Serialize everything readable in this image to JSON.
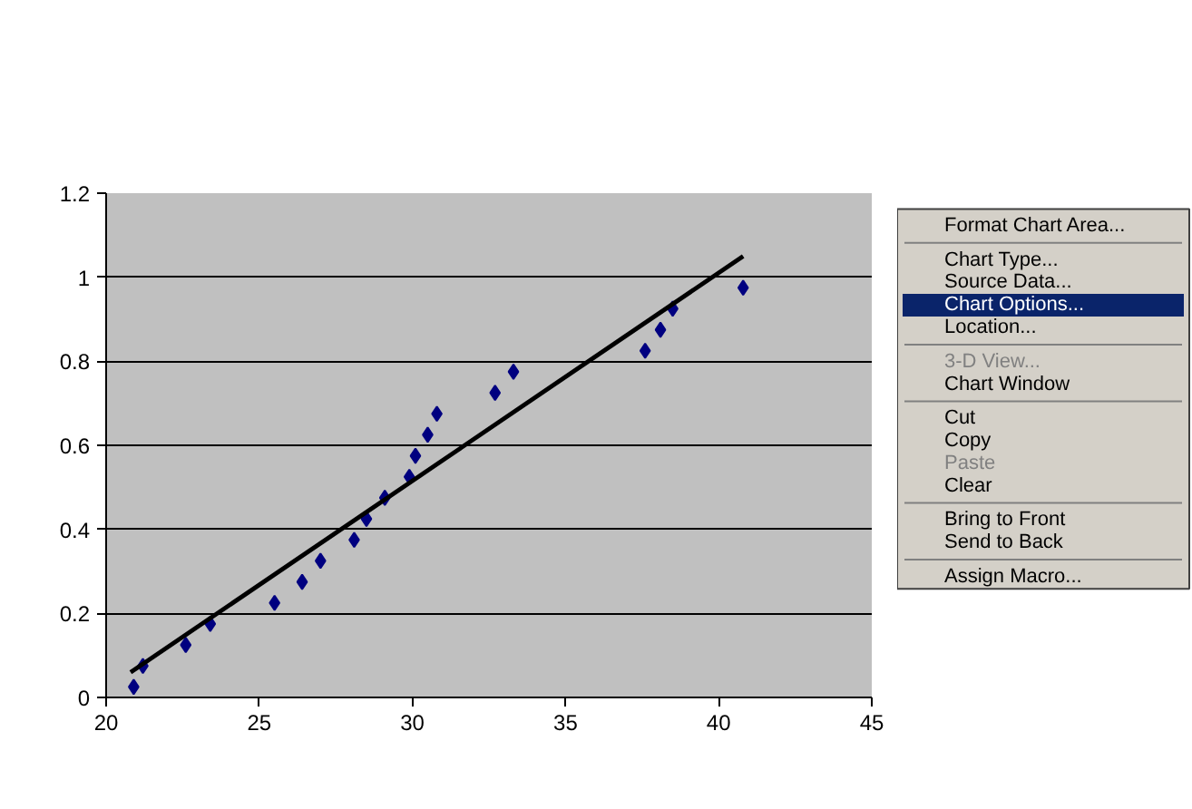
{
  "chart_data": {
    "type": "scatter",
    "xlim": [
      20,
      45
    ],
    "ylim": [
      0,
      1.2
    ],
    "xticks": [
      20,
      25,
      30,
      35,
      40,
      45
    ],
    "yticks": [
      0,
      0.2,
      0.4,
      0.6,
      0.8,
      1,
      1.2
    ],
    "grid": "y",
    "marker": "diamond",
    "series": [
      {
        "color": "#000080",
        "x": [
          20.9,
          21.2,
          22.6,
          23.4,
          25.5,
          26.4,
          27.0,
          28.1,
          28.5,
          29.1,
          29.9,
          30.1,
          30.5,
          30.8,
          32.7,
          33.3,
          37.6,
          38.1,
          38.5,
          40.8
        ],
        "values": [
          0.025,
          0.075,
          0.125,
          0.175,
          0.225,
          0.275,
          0.325,
          0.375,
          0.425,
          0.475,
          0.525,
          0.575,
          0.625,
          0.675,
          0.725,
          0.775,
          0.825,
          0.875,
          0.925,
          0.975
        ]
      },
      {
        "type": "line",
        "marker": "none",
        "color": "#000000",
        "x": [
          20.8,
          40.8
        ],
        "values": [
          0.06,
          1.05
        ]
      }
    ],
    "annotations": [
      "Format Chart Area...",
      "Chart Type...",
      "Source Data...",
      "Chart Options...",
      "Location...",
      "3-D View...",
      "Chart Window",
      "Cut",
      "Copy",
      "Paste",
      "Clear",
      "Bring to Front",
      "Send to Back",
      "Assign Macro..."
    ]
  }
}
